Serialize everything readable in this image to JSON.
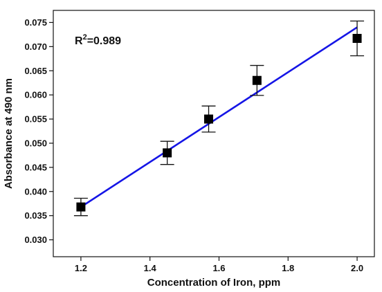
{
  "chart_data": {
    "type": "scatter",
    "xlabel": "Concentration of Iron, ppm",
    "ylabel": "Absorbance at 490 nm",
    "xlim": [
      1.12,
      2.05
    ],
    "ylim": [
      0.0265,
      0.0775
    ],
    "xticks": [
      "1.2",
      "1.4",
      "1.6",
      "1.8",
      "2.0"
    ],
    "yticks": [
      "0.030",
      "0.035",
      "0.040",
      "0.045",
      "0.050",
      "0.055",
      "0.060",
      "0.065",
      "0.070",
      "0.075"
    ],
    "annotation": {
      "base": "R",
      "sup": "2",
      "rest": "=0.989"
    },
    "points": [
      {
        "x": 1.2,
        "y": 0.0368,
        "err": 0.0018
      },
      {
        "x": 1.45,
        "y": 0.048,
        "err": 0.0024
      },
      {
        "x": 1.57,
        "y": 0.055,
        "err": 0.0027
      },
      {
        "x": 1.71,
        "y": 0.063,
        "err": 0.0031
      },
      {
        "x": 2.0,
        "y": 0.0717,
        "err": 0.0036
      }
    ],
    "fit_line": {
      "x": [
        1.2,
        2.0
      ],
      "y": [
        0.0368,
        0.074
      ]
    },
    "marker_color": "#000000",
    "fit_color": "#1515e6",
    "grid": false,
    "legend": "none"
  }
}
